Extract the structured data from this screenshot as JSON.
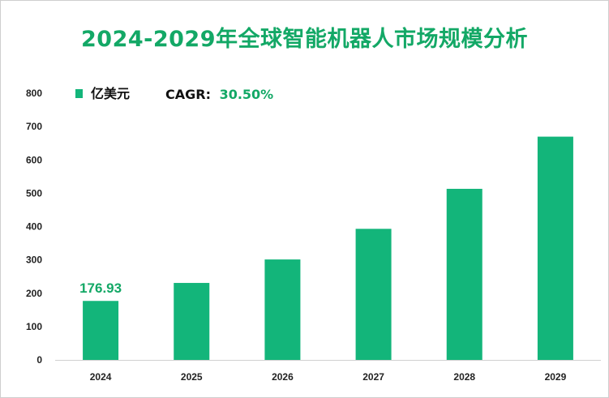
{
  "chart_data": {
    "type": "bar",
    "title": "2024-2029年全球智能机器人市场规模分析",
    "categories": [
      "2024",
      "2025",
      "2026",
      "2027",
      "2028",
      "2029"
    ],
    "series": [
      {
        "name": "亿美元",
        "values": [
          176.93,
          230.9,
          301.3,
          393.2,
          513.2,
          669.7
        ],
        "color": "#13b57a"
      }
    ],
    "ylim": [
      0,
      800
    ],
    "yticks": [
      0,
      100,
      200,
      300,
      400,
      500,
      600,
      700,
      800
    ],
    "data_labels": [
      {
        "index": 0,
        "text": "176.93"
      }
    ],
    "cagr": {
      "label": "CAGR:",
      "value": "30.50%"
    },
    "legend_position": "top-left",
    "grid": false
  }
}
